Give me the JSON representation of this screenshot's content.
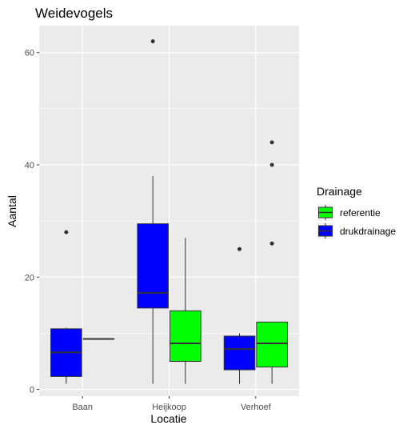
{
  "chart_data": {
    "type": "boxplot",
    "title": "Weidevogels",
    "xlabel": "Locatie",
    "ylabel": "Aantal",
    "ylim": [
      -1.2,
      64.8
    ],
    "yticks": [
      0,
      20,
      40,
      60
    ],
    "categories": [
      "Baan",
      "Heijkoop",
      "Verhoef"
    ],
    "legend": {
      "title": "Drainage",
      "placement": "right",
      "entries": [
        "referentie",
        "drukdrainage"
      ]
    },
    "colors": {
      "referentie": "#00ff00",
      "drukdrainage": "#0000ff"
    },
    "grid": true,
    "series": [
      {
        "name": "drukdrainage",
        "boxes": [
          {
            "category": "Baan",
            "min": 1,
            "q1": 2.3,
            "median": 6.6,
            "q3": 10.8,
            "max": 11,
            "outliers": [
              28
            ]
          },
          {
            "category": "Heijkoop",
            "min": 1,
            "q1": 14.5,
            "median": 17.2,
            "q3": 29.5,
            "max": 38,
            "outliers": [
              62
            ]
          },
          {
            "category": "Verhoef",
            "min": 1,
            "q1": 3.5,
            "median": 7.2,
            "q3": 9.5,
            "max": 10,
            "outliers": [
              25
            ]
          }
        ]
      },
      {
        "name": "referentie",
        "boxes": [
          {
            "category": "Baan",
            "min": 9,
            "q1": 9,
            "median": 9,
            "q3": 9,
            "max": 9,
            "outliers": []
          },
          {
            "category": "Heijkoop",
            "min": 1,
            "q1": 5,
            "median": 8.2,
            "q3": 14,
            "max": 27,
            "outliers": []
          },
          {
            "category": "Verhoef",
            "min": 1,
            "q1": 4,
            "median": 8.2,
            "q3": 12,
            "max": 12,
            "outliers": [
              26,
              40,
              44
            ]
          }
        ]
      }
    ]
  }
}
